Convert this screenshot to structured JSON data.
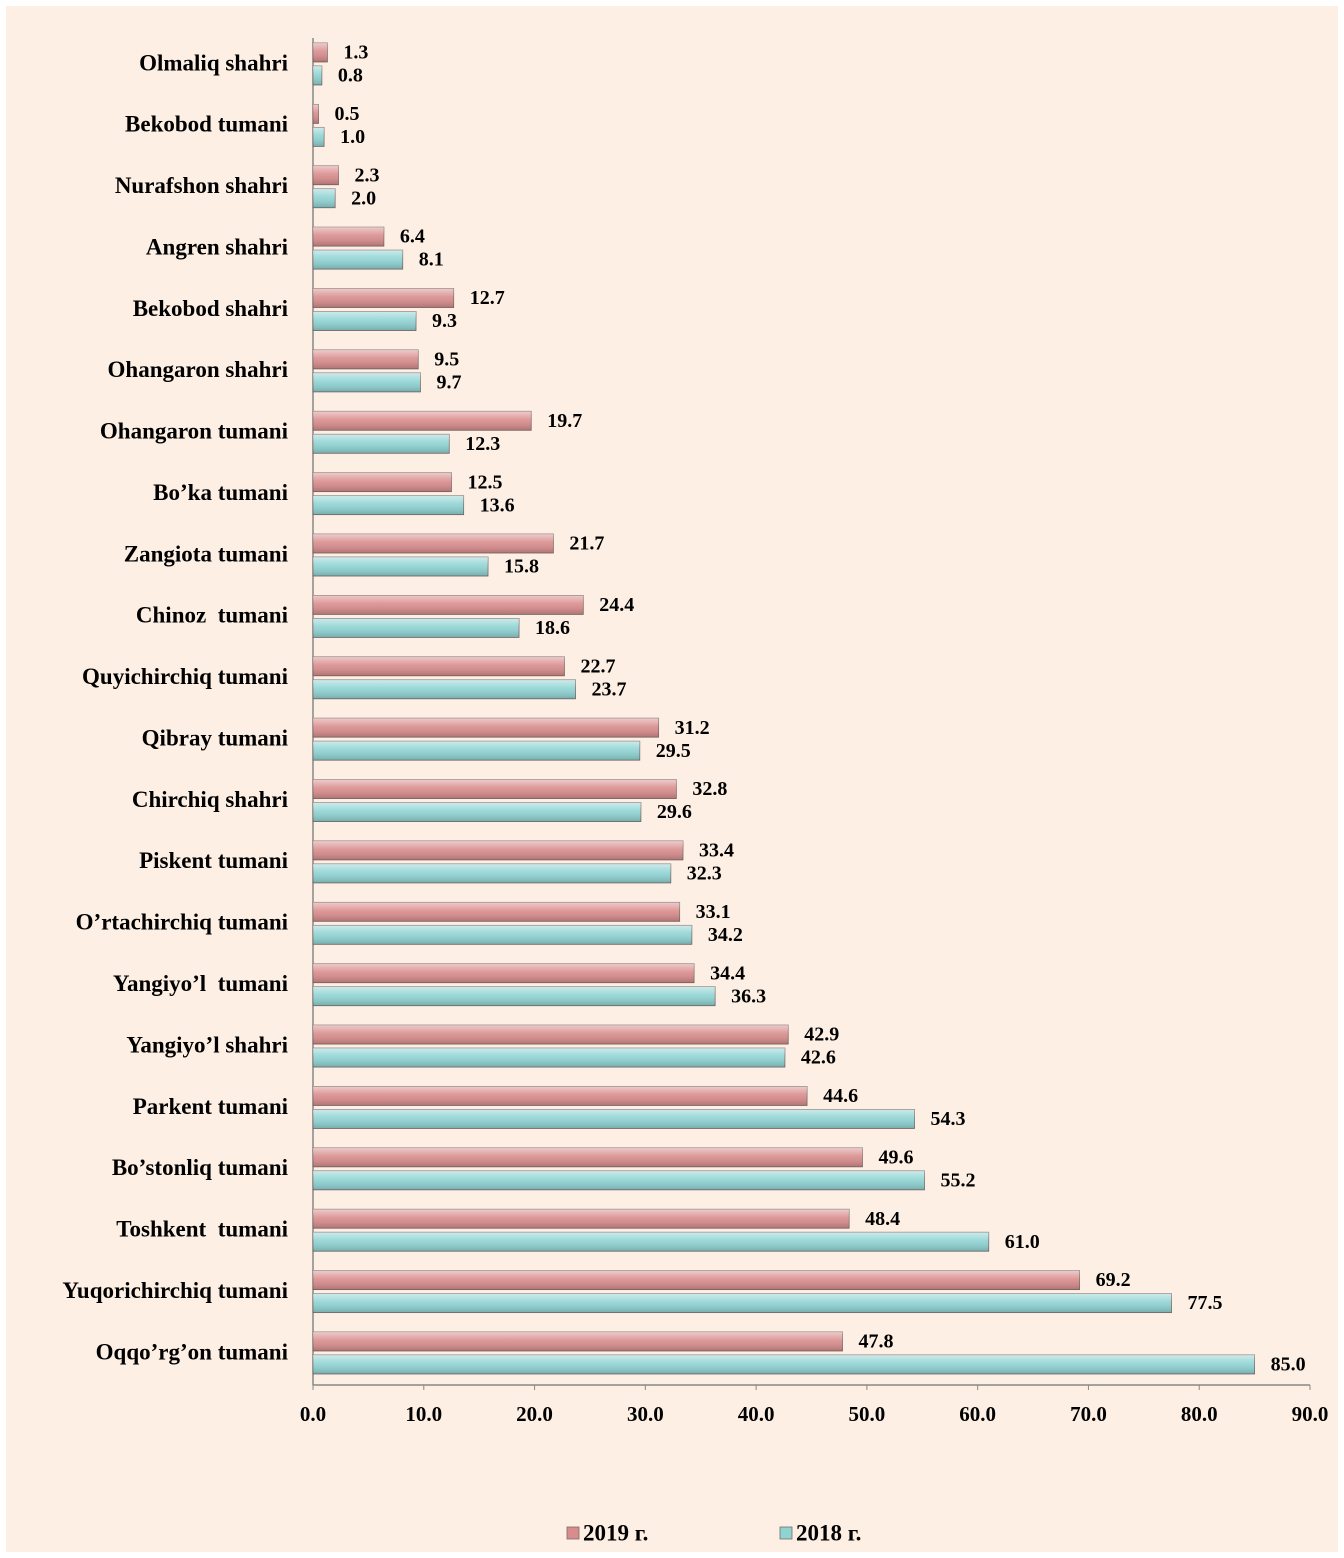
{
  "chart_data": {
    "type": "barh",
    "categories": [
      "Olmaliq shahri",
      "Bekobod tumani",
      "Nurafshon shahri",
      "Angren shahri",
      "Bekobod shahri",
      "Ohangaron shahri",
      "Ohangaron tumani",
      "Bo’ka tumani",
      "Zangiota tumani",
      "Chinoz  tumani",
      "Quyichirchiq tumani",
      "Qibray tumani",
      "Chirchiq shahri",
      "Piskent tumani",
      "O’rtachirchiq tumani",
      "Yangiyo’l  tumani",
      "Yangiyo’l shahri",
      "Parkent tumani",
      "Bo’stonliq tumani",
      "Toshkent  tumani",
      "Yuqorichirchiq tumani",
      "Oqqo’rg’on tumani"
    ],
    "series": [
      {
        "name": "2019 г.",
        "color": "#d98c8c",
        "values": [
          1.3,
          0.5,
          2.3,
          6.4,
          12.7,
          9.5,
          19.7,
          12.5,
          21.7,
          24.4,
          22.7,
          31.2,
          32.8,
          33.4,
          33.1,
          34.4,
          42.9,
          44.6,
          49.6,
          48.4,
          69.2,
          47.8
        ],
        "value_labels": [
          "1.3",
          "0.5",
          "2.3",
          "6.4",
          "12.7",
          "9.5",
          "19.7",
          "12.5",
          "21.7",
          "24.4",
          "22.7",
          "31.2",
          "32.8",
          "33.4",
          "33.1",
          "34.4",
          "42.9",
          "44.6",
          "49.6",
          "48.4",
          "69.2",
          "47.8"
        ]
      },
      {
        "name": "2018 г.",
        "color": "#8fd3d3",
        "values": [
          0.8,
          1.0,
          2.0,
          8.1,
          9.3,
          9.7,
          12.3,
          13.6,
          15.8,
          18.6,
          23.7,
          29.5,
          29.6,
          32.3,
          34.2,
          36.3,
          42.6,
          54.3,
          55.2,
          61.0,
          77.5,
          85.0
        ],
        "value_labels": [
          "0.8",
          "1.0",
          "2.0",
          "8.1",
          "9.3",
          "9.7",
          "12.3",
          "13.6",
          "15.8",
          "18.6",
          "23.7",
          "29.5",
          "29.6",
          "32.3",
          "34.2",
          "36.3",
          "42.6",
          "54.3",
          "55.2",
          "61.0",
          "77.5",
          "85.0"
        ]
      }
    ],
    "xlim": [
      0,
      90
    ],
    "xticks": [
      {
        "value": 0,
        "label": "0.0"
      },
      {
        "value": 10,
        "label": "10.0"
      },
      {
        "value": 20,
        "label": "20.0"
      },
      {
        "value": 30,
        "label": "30.0"
      },
      {
        "value": 40,
        "label": "40.0"
      },
      {
        "value": 50,
        "label": "50.0"
      },
      {
        "value": 60,
        "label": "60.0"
      },
      {
        "value": 70,
        "label": "70.0"
      },
      {
        "value": 80,
        "label": "80.0"
      },
      {
        "value": 90,
        "label": "90.0"
      }
    ],
    "legend": "bottom"
  }
}
